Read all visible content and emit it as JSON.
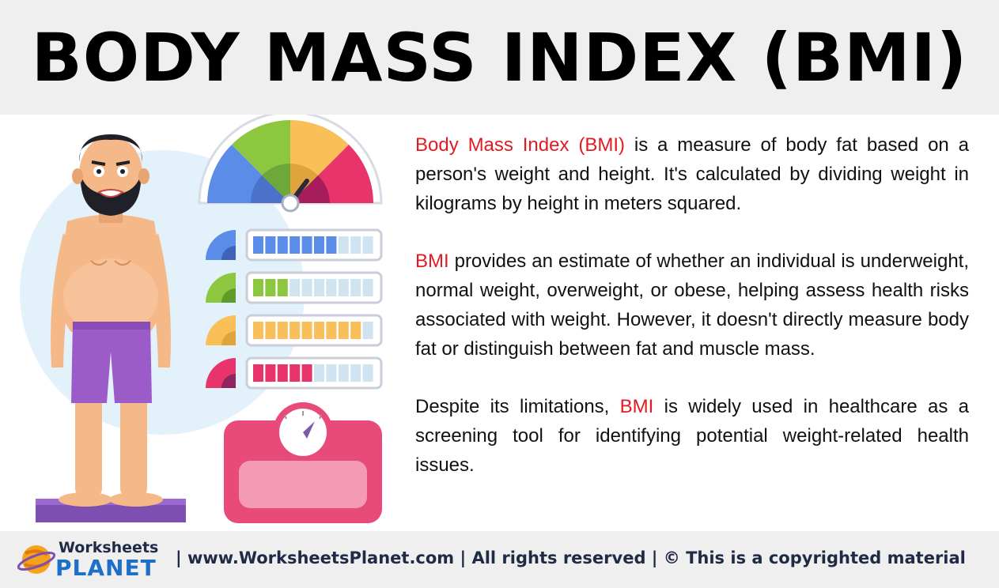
{
  "title": "BODY MASS INDEX (BMI)",
  "paragraphs": {
    "p1": {
      "highlight": "Body Mass Index (BMI)",
      "text": " is a measure of body fat based on a person's weight and height. It's calculated by dividing weight in kilograms by height in meters squared."
    },
    "p2": {
      "highlight": "BMI",
      "text": " provides an estimate of whether an individual is underweight, normal weight, overweight, or obese, helping assess health risks associated with weight. However, it doesn't directly measure body fat or distinguish between fat and muscle mass."
    },
    "p3": {
      "before": "Despite its limitations, ",
      "highlight": "BMI",
      "after": " is widely used in healthcare as a screening tool for identifying potential weight-related health issues."
    }
  },
  "footer": {
    "logo_line1": "Worksheets",
    "logo_line2": "PLANET",
    "text": "| www.WorksheetsPlanet.com | All rights reserved | © This is a copyrighted material"
  },
  "colors": {
    "accent_red": "#e11b22",
    "gauge_blue": "#5b8de8",
    "gauge_green": "#8dc63f",
    "gauge_yellow": "#f9c05a",
    "gauge_pink": "#e8336b",
    "shorts_purple": "#9b5cc9",
    "scale_pink": "#e84a7a"
  },
  "icons": {
    "person": "man-on-scale-illustration",
    "gauge": "bmi-gauge-icon",
    "scale": "weighing-scale-icon",
    "logo": "planet-logo-icon"
  },
  "bars": [
    {
      "category": "blue",
      "level": 0.7
    },
    {
      "category": "green",
      "level": 0.3
    },
    {
      "category": "yellow",
      "level": 0.9
    },
    {
      "category": "pink",
      "level": 0.5
    }
  ]
}
